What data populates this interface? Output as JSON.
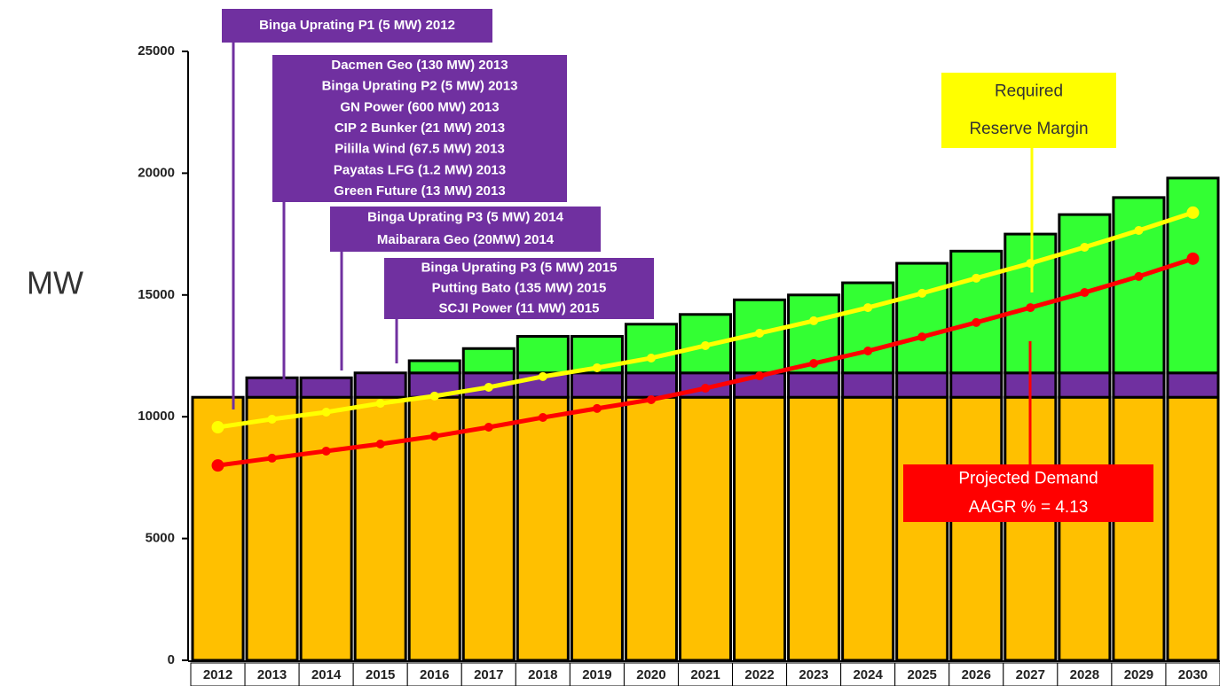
{
  "chart_data": {
    "type": "stacked-bar-line",
    "y_label": "MW",
    "categories": [
      "2012",
      "2013",
      "2014",
      "2015",
      "2016",
      "2017",
      "2018",
      "2019",
      "2020",
      "2021",
      "2022",
      "2023",
      "2024",
      "2025",
      "2026",
      "2027",
      "2028",
      "2029",
      "2030"
    ],
    "ylim": [
      0,
      25000
    ],
    "yticks": [
      0,
      5000,
      10000,
      15000,
      20000,
      25000
    ],
    "series": [
      {
        "color": "#ffc000",
        "values": [
          10800,
          10800,
          10800,
          10800,
          10800,
          10800,
          10800,
          10800,
          10800,
          10800,
          10800,
          10800,
          10800,
          10800,
          10800,
          10800,
          10800,
          10800,
          10800
        ]
      },
      {
        "color": "#7030a0",
        "values": [
          0,
          800,
          800,
          1000,
          1000,
          1000,
          1000,
          1000,
          1000,
          1000,
          1000,
          1000,
          1000,
          1000,
          1000,
          1000,
          1000,
          1000,
          1000
        ]
      },
      {
        "color": "#33ff33",
        "values": [
          0,
          0,
          0,
          0,
          500,
          1000,
          1500,
          1500,
          2000,
          2400,
          3000,
          3200,
          3700,
          4500,
          5000,
          5700,
          6500,
          7200,
          8000
        ]
      }
    ],
    "lines": [
      {
        "color": "#ffff00",
        "values": [
          9570,
          9900,
          10190,
          10550,
          10850,
          11210,
          11650,
          12010,
          12410,
          12920,
          13430,
          13940,
          14480,
          15070,
          15690,
          16300,
          16960,
          17650,
          18380
        ]
      },
      {
        "color": "#ff0000",
        "values": [
          8000,
          8300,
          8590,
          8880,
          9200,
          9570,
          9970,
          10340,
          10700,
          11170,
          11680,
          12190,
          12700,
          13280,
          13870,
          14480,
          15100,
          15760,
          16490
        ]
      }
    ],
    "annotations": [
      {
        "lines": [
          "Binga Uprating P1 (5 MW) 2012"
        ]
      },
      {
        "lines": [
          "Dacmen Geo (130 MW) 2013",
          "Binga Uprating P2 (5 MW) 2013",
          "GN Power  (600 MW) 2013",
          "CIP 2 Bunker (21 MW) 2013",
          "Pililla Wind (67.5 MW) 2013",
          "Payatas LFG (1.2 MW) 2013",
          "Green Future (13 MW) 2013"
        ]
      },
      {
        "lines": [
          "Binga Uprating P3 (5 MW) 2014",
          "Maibarara Geo (20MW) 2014"
        ]
      },
      {
        "lines": [
          "Binga Uprating P3 (5 MW) 2015",
          "Putting Bato (135 MW) 2015",
          "SCJI Power (11 MW) 2015"
        ]
      },
      {
        "lines": [
          "Required",
          "Reserve Margin"
        ]
      },
      {
        "lines": [
          "Projected Demand",
          "AAGR % = 4.13"
        ]
      }
    ]
  }
}
